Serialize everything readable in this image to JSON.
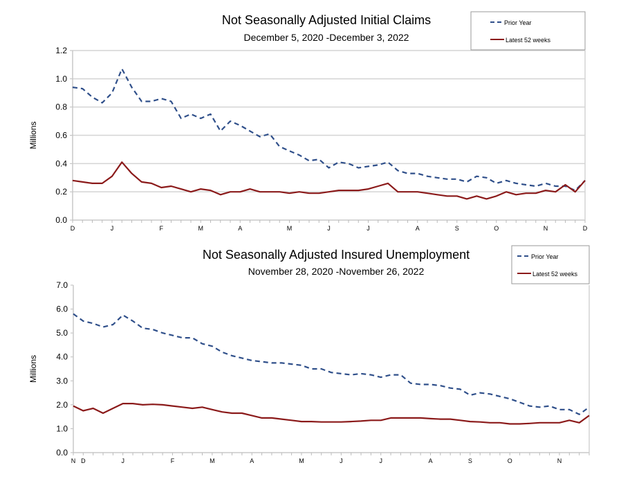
{
  "colors": {
    "prior": "#2f4f8a",
    "latest": "#8b1a1a",
    "grid": "#d9d9d9"
  },
  "chart_data": [
    {
      "type": "line",
      "title": "Not Seasonally Adjusted Initial Claims",
      "subtitle": "December 5, 2020  -December 3, 2022",
      "ylabel": "Millions",
      "xlabel": "",
      "ylim": [
        0,
        1.2
      ],
      "yticks": [
        "0.0",
        "0.2",
        "0.4",
        "0.6",
        "0.8",
        "1.0",
        "1.2"
      ],
      "ytick_values": [
        0,
        0.2,
        0.4,
        0.6,
        0.8,
        1.0,
        1.2
      ],
      "x_weeks": 53,
      "xticks": [
        {
          "label": "D",
          "week": 0
        },
        {
          "label": "J",
          "week": 4
        },
        {
          "label": "F",
          "week": 9
        },
        {
          "label": "M",
          "week": 13
        },
        {
          "label": "A",
          "week": 17
        },
        {
          "label": "M",
          "week": 22
        },
        {
          "label": "J",
          "week": 26
        },
        {
          "label": "J",
          "week": 30
        },
        {
          "label": "A",
          "week": 35
        },
        {
          "label": "S",
          "week": 39
        },
        {
          "label": "O",
          "week": 43
        },
        {
          "label": "N",
          "week": 48
        },
        {
          "label": "D",
          "week": 52
        }
      ],
      "grid": true,
      "legend": {
        "placement": "top-right",
        "entries": [
          "Prior Year",
          "Latest 52 weeks"
        ]
      },
      "series": [
        {
          "name": "Prior Year",
          "style": "dashed",
          "values": [
            0.94,
            0.93,
            0.87,
            0.83,
            0.9,
            1.07,
            0.94,
            0.84,
            0.84,
            0.86,
            0.84,
            0.72,
            0.75,
            0.72,
            0.75,
            0.63,
            0.7,
            0.67,
            0.63,
            0.59,
            0.61,
            0.52,
            0.49,
            0.46,
            0.42,
            0.43,
            0.37,
            0.41,
            0.4,
            0.37,
            0.38,
            0.39,
            0.41,
            0.35,
            0.33,
            0.33,
            0.31,
            0.3,
            0.29,
            0.29,
            0.27,
            0.31,
            0.3,
            0.26,
            0.28,
            0.26,
            0.25,
            0.24,
            0.26,
            0.24,
            0.24,
            0.21,
            0.28
          ]
        },
        {
          "name": "Latest 52 weeks",
          "style": "solid",
          "values": [
            0.28,
            0.27,
            0.26,
            0.26,
            0.31,
            0.41,
            0.33,
            0.27,
            0.26,
            0.23,
            0.24,
            0.22,
            0.2,
            0.22,
            0.21,
            0.18,
            0.2,
            0.2,
            0.22,
            0.2,
            0.2,
            0.2,
            0.19,
            0.2,
            0.19,
            0.19,
            0.2,
            0.21,
            0.21,
            0.21,
            0.22,
            0.24,
            0.26,
            0.2,
            0.2,
            0.2,
            0.19,
            0.18,
            0.17,
            0.17,
            0.15,
            0.17,
            0.15,
            0.17,
            0.2,
            0.18,
            0.19,
            0.19,
            0.21,
            0.2,
            0.25,
            0.2,
            0.28
          ]
        }
      ]
    },
    {
      "type": "line",
      "title": "Not Seasonally Adjusted Insured Unemployment",
      "subtitle": "November 28, 2020 -November 26, 2022",
      "ylabel": "Millions",
      "xlabel": "",
      "ylim": [
        0,
        7.0
      ],
      "yticks": [
        "0.0",
        "1.0",
        "2.0",
        "3.0",
        "4.0",
        "5.0",
        "6.0",
        "7.0"
      ],
      "ytick_values": [
        0,
        1,
        2,
        3,
        4,
        5,
        6,
        7
      ],
      "x_weeks": 53,
      "xticks": [
        {
          "label": "N",
          "week": 0
        },
        {
          "label": "D",
          "week": 1
        },
        {
          "label": "J",
          "week": 5
        },
        {
          "label": "F",
          "week": 10
        },
        {
          "label": "M",
          "week": 14
        },
        {
          "label": "A",
          "week": 18
        },
        {
          "label": "M",
          "week": 23
        },
        {
          "label": "J",
          "week": 27
        },
        {
          "label": "J",
          "week": 31
        },
        {
          "label": "A",
          "week": 36
        },
        {
          "label": "S",
          "week": 40
        },
        {
          "label": "O",
          "week": 44
        },
        {
          "label": "N",
          "week": 49
        }
      ],
      "grid": false,
      "legend": {
        "placement": "top-right",
        "entries": [
          "Prior Year",
          "Latest 52 weeks"
        ]
      },
      "series": [
        {
          "name": "Prior Year",
          "style": "dashed",
          "values": [
            5.8,
            5.5,
            5.4,
            5.25,
            5.35,
            5.75,
            5.5,
            5.2,
            5.15,
            5.0,
            4.9,
            4.8,
            4.8,
            4.55,
            4.45,
            4.2,
            4.05,
            3.95,
            3.85,
            3.8,
            3.75,
            3.75,
            3.7,
            3.65,
            3.5,
            3.5,
            3.35,
            3.3,
            3.25,
            3.3,
            3.25,
            3.15,
            3.25,
            3.25,
            2.9,
            2.85,
            2.85,
            2.8,
            2.7,
            2.65,
            2.4,
            2.5,
            2.45,
            2.35,
            2.25,
            2.1,
            1.95,
            1.9,
            1.95,
            1.8,
            1.8,
            1.6,
            1.9
          ]
        },
        {
          "name": "Latest 52 weeks",
          "style": "solid",
          "values": [
            1.95,
            1.75,
            1.85,
            1.65,
            1.85,
            2.05,
            2.05,
            2.0,
            2.02,
            2.0,
            1.95,
            1.9,
            1.85,
            1.9,
            1.8,
            1.7,
            1.65,
            1.65,
            1.55,
            1.45,
            1.45,
            1.4,
            1.35,
            1.3,
            1.3,
            1.28,
            1.28,
            1.28,
            1.3,
            1.32,
            1.35,
            1.35,
            1.45,
            1.45,
            1.45,
            1.45,
            1.42,
            1.4,
            1.4,
            1.35,
            1.3,
            1.28,
            1.25,
            1.25,
            1.2,
            1.2,
            1.22,
            1.25,
            1.25,
            1.25,
            1.35,
            1.25,
            1.55
          ]
        }
      ]
    }
  ]
}
